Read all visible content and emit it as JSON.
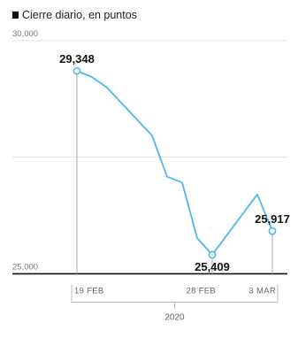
{
  "legend": {
    "label": "Cierre diario, en puntos"
  },
  "chart_data": {
    "type": "line",
    "title": "",
    "xlabel": "",
    "ylabel": "",
    "series": [
      {
        "color": "#4fb8e8",
        "points": [
          {
            "date": "2020-02-19",
            "value": 29348
          },
          {
            "date": "2020-02-20",
            "value": 29219
          },
          {
            "date": "2020-02-21",
            "value": 28992
          },
          {
            "date": "2020-02-24",
            "value": 27961
          },
          {
            "date": "2020-02-25",
            "value": 27081
          },
          {
            "date": "2020-02-26",
            "value": 26957
          },
          {
            "date": "2020-02-27",
            "value": 25766
          },
          {
            "date": "2020-02-28",
            "value": 25409
          },
          {
            "date": "2020-03-02",
            "value": 26703
          },
          {
            "date": "2020-03-03",
            "value": 25917
          }
        ]
      }
    ],
    "ylim": [
      24800,
      30300
    ],
    "yticks": [
      {
        "value": 30000,
        "label": "30,000"
      },
      {
        "value": 25000,
        "label": "25,000"
      }
    ],
    "gridlines": [
      30000,
      27500
    ],
    "baseline": 25000,
    "xlim": [
      "2020-02-18",
      "2020-03-04"
    ],
    "xticks": [
      {
        "date": "2020-02-19",
        "label": "19 FEB"
      },
      {
        "date": "2020-02-28",
        "label": "28 FEB"
      },
      {
        "date": "2020-03-03",
        "label": "3 MAR"
      }
    ],
    "year_label": "2020",
    "annotations": [
      {
        "date": "2020-02-19",
        "value": 29348,
        "label": "29,348",
        "position": "above"
      },
      {
        "date": "2020-02-28",
        "value": 25409,
        "label": "25,409",
        "position": "below"
      },
      {
        "date": "2020-03-03",
        "value": 25917,
        "label": "25,917",
        "position": "above"
      }
    ],
    "grid": true,
    "legend_position": "top-left"
  }
}
